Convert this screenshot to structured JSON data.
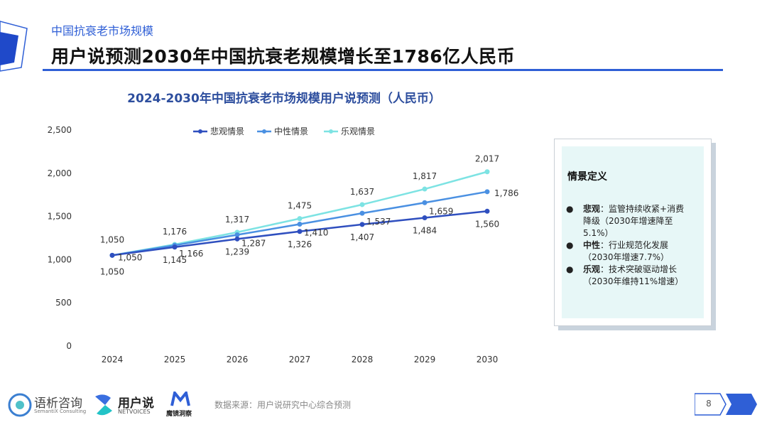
{
  "header": {
    "kicker": "中国抗衰老市场规模",
    "headline": "用户说预测2030年中国抗衰老规模增长至1786亿人民币"
  },
  "chart_data": {
    "type": "line",
    "title": "2024-2030年中国抗衰老市场规模用户说预测（人民币）",
    "x": [
      "2024",
      "2025",
      "2026",
      "2027",
      "2028",
      "2029",
      "2030"
    ],
    "ylim": [
      0,
      2500
    ],
    "yticks": [
      0,
      500,
      1000,
      1500,
      2000,
      2500
    ],
    "ytick_labels": [
      "0",
      "500",
      "1,000",
      "1,500",
      "2,000",
      "2,500"
    ],
    "legend_position": "top-center",
    "series": [
      {
        "name": "悲观情景",
        "color": "#2f4fbf",
        "values": [
          1050,
          1145,
          1239,
          1326,
          1407,
          1484,
          1560
        ],
        "labels": [
          "1,050",
          "1,145",
          "1,239",
          "1,326",
          "1,407",
          "1,484",
          "1,560"
        ]
      },
      {
        "name": "中性情景",
        "color": "#4a90e2",
        "values": [
          1050,
          1166,
          1287,
          1410,
          1537,
          1659,
          1786
        ],
        "labels": [
          "1,050",
          "1,166",
          "1,287",
          "1,410",
          "1,537",
          "1,659",
          "1,786"
        ]
      },
      {
        "name": "乐观情景",
        "color": "#7de3e3",
        "values": [
          1050,
          1176,
          1317,
          1475,
          1637,
          1817,
          2017
        ],
        "labels": [
          "1,050",
          "1,176",
          "1,317",
          "1,475",
          "1,637",
          "1,817",
          "2,017"
        ]
      }
    ]
  },
  "definitions": {
    "title": "情景定义",
    "items": [
      {
        "term": "悲观",
        "text": "：监管持续收紧+消费降级（2030年增速降至5.1%）"
      },
      {
        "term": "中性",
        "text": "：行业规范化发展（2030年增速7.7%）"
      },
      {
        "term": "乐观",
        "text": "：技术突破驱动增长（2030年维持11%增速）"
      }
    ],
    "bullet": "●"
  },
  "footer": {
    "source": "数据来源：用户说研究中心综合预测",
    "page": "8",
    "logos": {
      "semantix_cn": "语析咨询",
      "semantix_en": "SemantiX Consulting",
      "netvoices_cn": "用户说",
      "netvoices_en": "NETVOICES",
      "third_cn": "魔镜洞察"
    }
  }
}
